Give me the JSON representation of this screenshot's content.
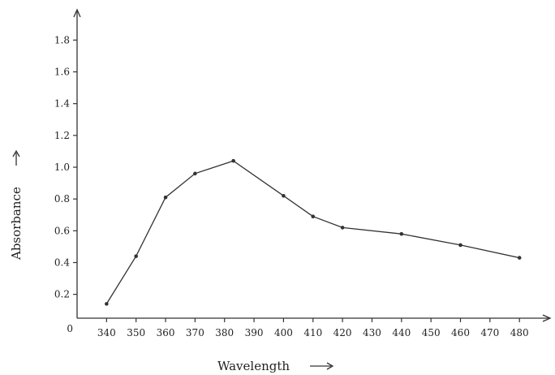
{
  "chart_data": {
    "type": "line",
    "xlabel": "Wavelength",
    "ylabel": "Absorbance",
    "origin_label": "0",
    "x_ticks": [
      "340",
      "350",
      "360",
      "370",
      "380",
      "390",
      "400",
      "410",
      "420",
      "430",
      "440",
      "450",
      "460",
      "470",
      "480"
    ],
    "y_ticks": [
      "0.2",
      "0.4",
      "0.6",
      "0.8",
      "1.0",
      "1.2",
      "1.4",
      "1.6",
      "1.8"
    ],
    "x_tick_values": [
      340,
      350,
      360,
      370,
      380,
      390,
      400,
      410,
      420,
      430,
      440,
      450,
      460,
      470,
      480
    ],
    "y_tick_values": [
      0.2,
      0.4,
      0.6,
      0.8,
      1.0,
      1.2,
      1.4,
      1.6,
      1.8
    ],
    "xlim": [
      330,
      486
    ],
    "ylim": [
      0.05,
      1.95
    ],
    "grid": false,
    "legend": "none",
    "colors": {
      "line": "#333333",
      "axis": "#333333"
    },
    "series": [
      {
        "x": [
          340,
          350,
          360,
          370,
          383,
          400,
          410,
          420,
          440,
          460,
          480
        ],
        "y": [
          0.14,
          0.44,
          0.81,
          0.96,
          1.04,
          0.82,
          0.69,
          0.62,
          0.58,
          0.51,
          0.43
        ]
      }
    ]
  }
}
